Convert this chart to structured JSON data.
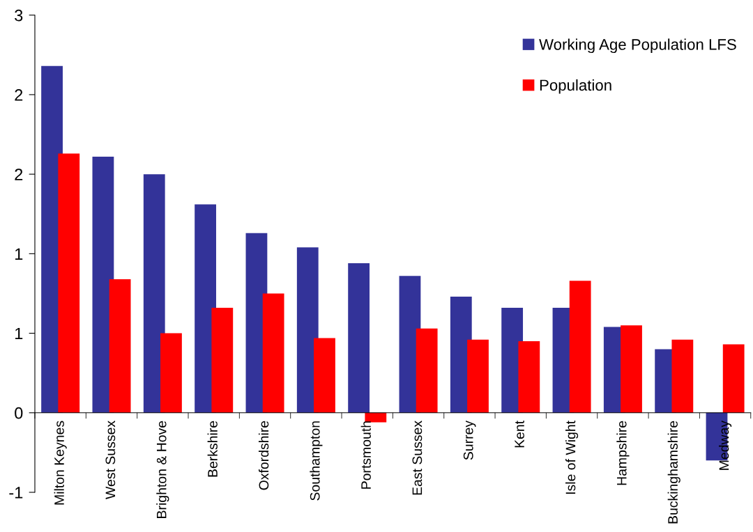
{
  "chart_data": {
    "type": "bar",
    "categories": [
      "Milton Keynes",
      "West Sussex",
      "Brighton & Hove",
      "Berkshire",
      "Oxfordshire",
      "Southampton",
      "Portsmouth",
      "East Sussex",
      "Surrey",
      "Kent",
      "Isle of Wight",
      "Hampshire",
      "Buckinghamshire",
      "Medway"
    ],
    "series": [
      {
        "name": "Working Age Population LFS",
        "color": "#333399",
        "values": [
          2.18,
          1.61,
          1.5,
          1.31,
          1.13,
          1.04,
          0.94,
          0.86,
          0.73,
          0.66,
          0.66,
          0.54,
          0.4,
          -0.3
        ]
      },
      {
        "name": "Population",
        "color": "#ff0000",
        "values": [
          1.63,
          0.84,
          0.5,
          0.66,
          0.75,
          0.47,
          -0.06,
          0.53,
          0.46,
          0.45,
          0.83,
          0.55,
          0.46,
          0.43
        ]
      }
    ],
    "ylim": [
      -0.5,
      2.5
    ],
    "yticks": [
      {
        "value": -0.5,
        "label": "-1"
      },
      0,
      {
        "value": 0.5,
        "label": "1"
      },
      1,
      {
        "value": 1.5,
        "label": "2"
      },
      2,
      {
        "value": 2.5,
        "label": "3"
      }
    ],
    "legend": "top right"
  }
}
